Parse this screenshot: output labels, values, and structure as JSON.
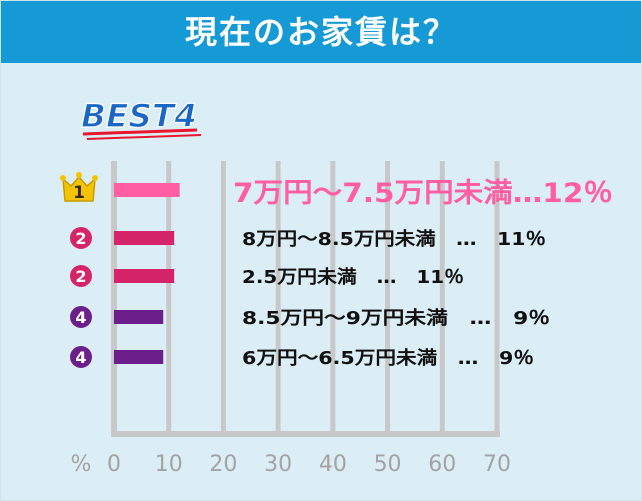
{
  "title": "現在のお家賃は？",
  "badge": "BEST4",
  "colors": {
    "header": "#169ad6",
    "background": "#dbeef6",
    "rank1": "#ff5fa2",
    "rank2": "#d6246b",
    "rank4": "#6c1f8a",
    "crown": "#f5c400",
    "grid": "#c8c8c8",
    "badge_fill": "#1a67c5",
    "badge_underline": "#e8162f"
  },
  "chart_data": {
    "type": "bar",
    "orientation": "horizontal",
    "unit_label": "%",
    "xlim": [
      0,
      70
    ],
    "ticks": [
      0,
      10,
      20,
      30,
      40,
      50,
      60,
      70
    ],
    "grid": "vertical",
    "items": [
      {
        "rank": "1",
        "icon": "crown-icon",
        "label": "7万円～7.5万円未満…12％",
        "value": 12
      },
      {
        "rank": "2",
        "icon": "circle-icon",
        "label": "8万円～8.5万円未満　…　11％",
        "value": 11
      },
      {
        "rank": "2",
        "icon": "circle-icon",
        "label": "2.5万円未満　…　11％",
        "value": 11
      },
      {
        "rank": "4",
        "icon": "circle-icon",
        "label": "8.5万円～9万円未満　…　9％",
        "value": 9
      },
      {
        "rank": "4",
        "icon": "circle-icon",
        "label": "6万円～6.5万円未満　…　9％",
        "value": 9
      }
    ]
  }
}
